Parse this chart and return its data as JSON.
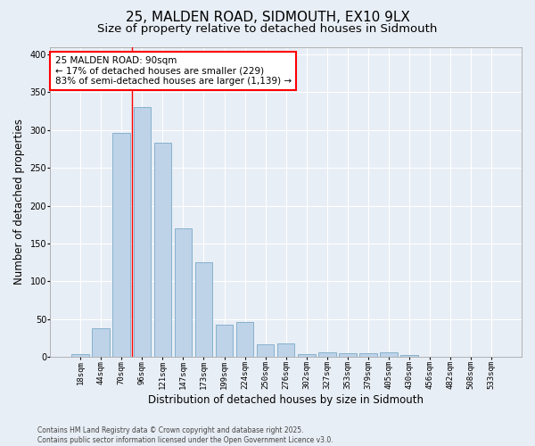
{
  "title1": "25, MALDEN ROAD, SIDMOUTH, EX10 9LX",
  "title2": "Size of property relative to detached houses in Sidmouth",
  "xlabel": "Distribution of detached houses by size in Sidmouth",
  "ylabel": "Number of detached properties",
  "categories": [
    "18sqm",
    "44sqm",
    "70sqm",
    "96sqm",
    "121sqm",
    "147sqm",
    "173sqm",
    "199sqm",
    "224sqm",
    "250sqm",
    "276sqm",
    "302sqm",
    "327sqm",
    "353sqm",
    "379sqm",
    "405sqm",
    "430sqm",
    "456sqm",
    "482sqm",
    "508sqm",
    "533sqm"
  ],
  "values": [
    3,
    38,
    296,
    330,
    283,
    170,
    125,
    43,
    46,
    16,
    18,
    4,
    6,
    5,
    5,
    6,
    2,
    0,
    0,
    0,
    0
  ],
  "bar_color": "#bed3e8",
  "bar_edge_color": "#7aaac8",
  "vline_color": "red",
  "vline_x_index": 3,
  "annotation_text": "25 MALDEN ROAD: 90sqm\n← 17% of detached houses are smaller (229)\n83% of semi-detached houses are larger (1,139) →",
  "annotation_box_color": "white",
  "annotation_box_edge": "red",
  "bg_color": "#e8eef5",
  "grid_color": "white",
  "ylim": [
    0,
    410
  ],
  "yticks": [
    0,
    50,
    100,
    150,
    200,
    250,
    300,
    350,
    400
  ],
  "footer": "Contains HM Land Registry data © Crown copyright and database right 2025.\nContains public sector information licensed under the Open Government Licence v3.0.",
  "title_fontsize": 11,
  "subtitle_fontsize": 9.5,
  "tick_fontsize": 6.5,
  "ylabel_fontsize": 8.5,
  "xlabel_fontsize": 8.5,
  "annotation_fontsize": 7.5,
  "footer_fontsize": 5.5
}
